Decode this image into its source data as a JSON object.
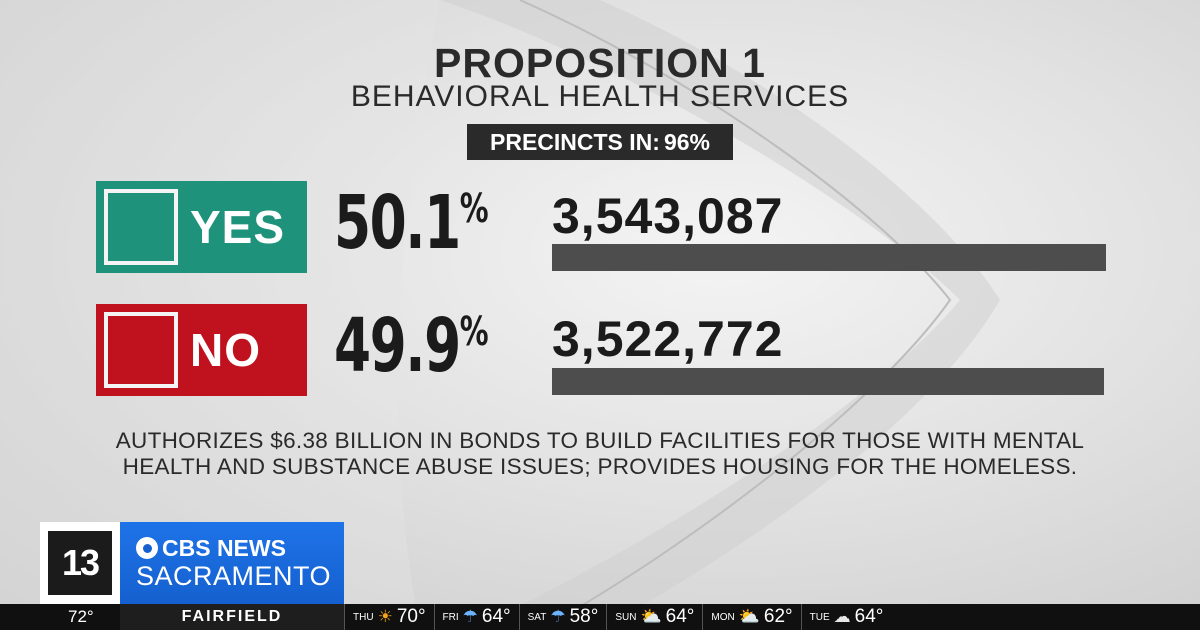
{
  "header": {
    "title": "PROPOSITION 1",
    "subtitle": "BEHAVIORAL HEALTH SERVICES",
    "precincts_label": "PRECINCTS IN:",
    "precincts_value": "96%"
  },
  "results": [
    {
      "choice": "YES",
      "percent": "50.1",
      "percent_symbol": "%",
      "votes": "3,543,087",
      "bar_fraction": 0.501,
      "color": "#1f927c"
    },
    {
      "choice": "NO",
      "percent": "49.9",
      "percent_symbol": "%",
      "votes": "3,522,772",
      "bar_fraction": 0.499,
      "color": "#c0111f"
    }
  ],
  "description": {
    "line1": "AUTHORIZES $6.38 BILLION IN BONDS TO BUILD FACILITIES FOR THOSE WITH MENTAL",
    "line2": "HEALTH AND SUBSTANCE ABUSE ISSUES; PROVIDES HOUSING FOR THE HOMELESS."
  },
  "branding": {
    "station_number": "13",
    "network": "CBS NEWS",
    "city": "SACRAMENTO"
  },
  "ticker": {
    "current_temp": "72°",
    "location": "FAIRFIELD",
    "forecast": [
      {
        "day": "THU",
        "icon": "sun-icon",
        "temp": "70°"
      },
      {
        "day": "FRI",
        "icon": "rain-icon",
        "temp": "64°"
      },
      {
        "day": "SAT",
        "icon": "rain-icon",
        "temp": "58°"
      },
      {
        "day": "SUN",
        "icon": "partly-cloudy-icon",
        "temp": "64°"
      },
      {
        "day": "MON",
        "icon": "partly-cloudy-icon",
        "temp": "62°"
      },
      {
        "day": "TUE",
        "icon": "rain-cloud-icon",
        "temp": "64°"
      }
    ]
  }
}
